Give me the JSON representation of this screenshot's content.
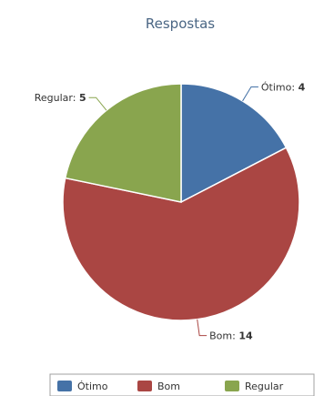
{
  "chart_data": {
    "type": "pie",
    "title": "Respostas",
    "slices": [
      {
        "label": "Ótimo",
        "value": 4,
        "color": "#4572a7"
      },
      {
        "label": "Bom",
        "value": 14,
        "color": "#aa4643"
      },
      {
        "label": "Regular",
        "value": 5,
        "color": "#89a54e"
      }
    ],
    "legend_position": "bottom",
    "data_labels": true
  }
}
